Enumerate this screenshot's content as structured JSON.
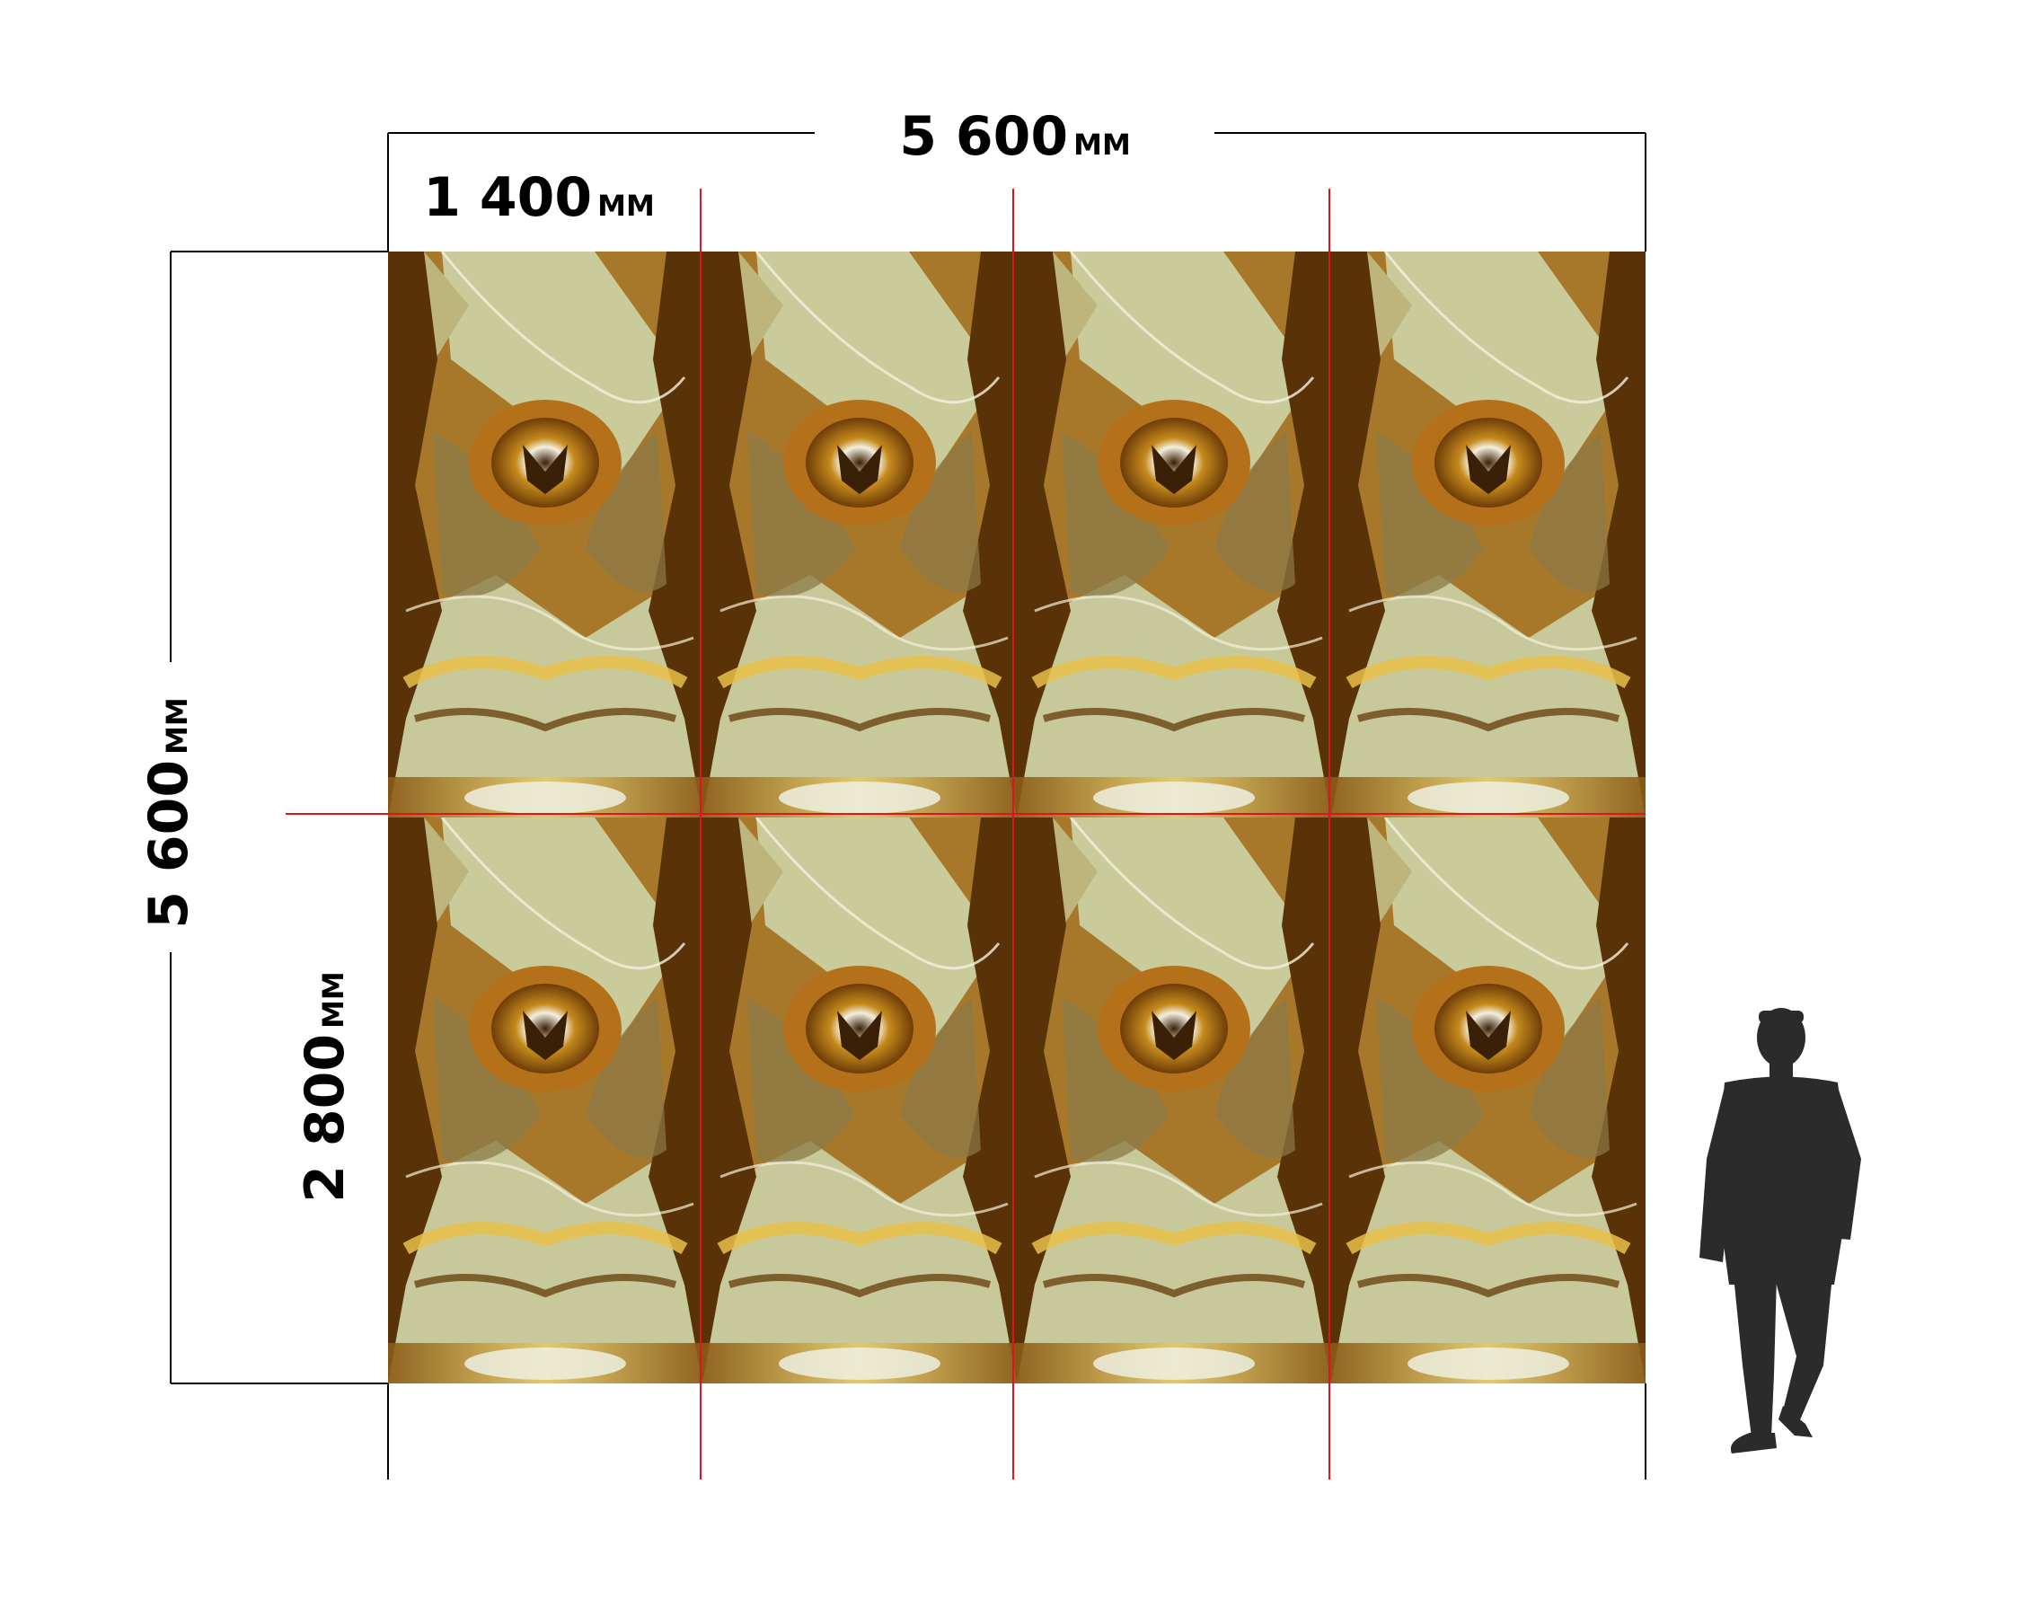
{
  "dimensions": {
    "total_width": {
      "value": "5 600",
      "unit": "ММ"
    },
    "total_height": {
      "value": "5 600",
      "unit": "ММ"
    },
    "panel_width": {
      "value": "1 400",
      "unit": "ММ"
    },
    "panel_height": {
      "value": "2 800",
      "unit": "ММ"
    }
  },
  "layout_grid": {
    "columns": 4,
    "rows": 2
  },
  "colors": {
    "dimension_line": "#000000",
    "seam_line": "#e0141e",
    "onyx_dark_brown": "#5a3208",
    "onyx_amber": "#b07a18",
    "onyx_gold": "#d9a92a",
    "onyx_pale_green": "#c9cc9a",
    "onyx_cream": "#eae6c8",
    "silhouette": "#2b2b2b"
  },
  "figure": {
    "icon": "human-silhouette-icon"
  }
}
